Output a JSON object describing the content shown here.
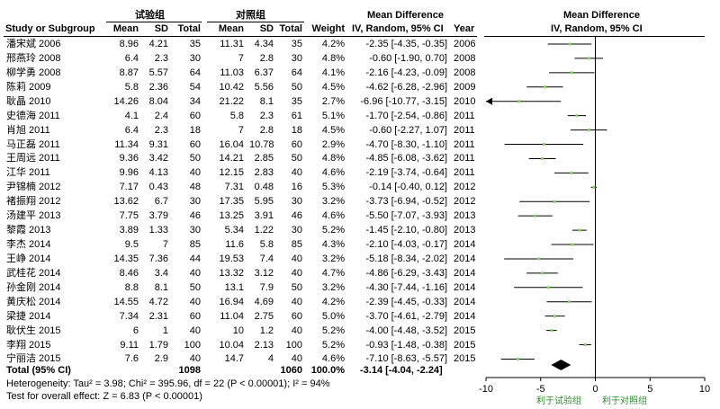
{
  "header": {
    "exp_group": "试验组",
    "ctl_group": "对照组",
    "md_title": "Mean Difference",
    "md_title_right": "Mean Difference",
    "col_study": "Study or Subgroup",
    "col_mean1": "Mean",
    "col_sd1": "SD",
    "col_total1": "Total",
    "col_mean2": "Mean",
    "col_sd2": "SD",
    "col_total2": "Total",
    "col_weight": "Weight",
    "col_ci": "IV, Random, 95% CI",
    "col_year": "Year",
    "col_ci_right": "IV, Random, 95% CI"
  },
  "studies": [
    {
      "name": "潘宋斌 2006",
      "m1": "8.96",
      "sd1": "4.21",
      "n1": "35",
      "m2": "11.31",
      "sd2": "4.34",
      "n2": "35",
      "weight": "4.2%",
      "ci": "-2.35 [-4.35, -0.35]",
      "year": "2006"
    },
    {
      "name": "邢燕玲 2008",
      "m1": "6.4",
      "sd1": "2.3",
      "n1": "30",
      "m2": "7",
      "sd2": "2.8",
      "n2": "30",
      "weight": "4.8%",
      "ci": "-0.60 [-1.90, 0.70]",
      "year": "2008"
    },
    {
      "name": "柳学勇 2008",
      "m1": "8.87",
      "sd1": "5.57",
      "n1": "64",
      "m2": "11.03",
      "sd2": "6.37",
      "n2": "64",
      "weight": "4.1%",
      "ci": "-2.16 [-4.23, -0.09]",
      "year": "2008"
    },
    {
      "name": "陈莉 2009",
      "m1": "5.8",
      "sd1": "2.36",
      "n1": "54",
      "m2": "10.42",
      "sd2": "5.56",
      "n2": "50",
      "weight": "4.5%",
      "ci": "-4.62 [-6.28, -2.96]",
      "year": "2009"
    },
    {
      "name": "耿晶 2010",
      "m1": "14.26",
      "sd1": "8.04",
      "n1": "34",
      "m2": "21.22",
      "sd2": "8.1",
      "n2": "35",
      "weight": "2.7%",
      "ci": "-6.96 [-10.77, -3.15]",
      "year": "2010"
    },
    {
      "name": "史德海 2011",
      "m1": "4.1",
      "sd1": "2.4",
      "n1": "60",
      "m2": "5.8",
      "sd2": "2.3",
      "n2": "61",
      "weight": "5.1%",
      "ci": "-1.70 [-2.54, -0.86]",
      "year": "2011"
    },
    {
      "name": "肖旭 2011",
      "m1": "6.4",
      "sd1": "2.3",
      "n1": "18",
      "m2": "7",
      "sd2": "2.8",
      "n2": "18",
      "weight": "4.5%",
      "ci": "-0.60 [-2.27, 1.07]",
      "year": "2011"
    },
    {
      "name": "马正磊 2011",
      "m1": "11.34",
      "sd1": "9.31",
      "n1": "60",
      "m2": "16.04",
      "sd2": "10.78",
      "n2": "60",
      "weight": "2.9%",
      "ci": "-4.70 [-8.30, -1.10]",
      "year": "2011"
    },
    {
      "name": "王周远 2011",
      "m1": "9.36",
      "sd1": "3.42",
      "n1": "50",
      "m2": "14.21",
      "sd2": "2.85",
      "n2": "50",
      "weight": "4.8%",
      "ci": "-4.85 [-6.08, -3.62]",
      "year": "2011"
    },
    {
      "name": "江华 2011",
      "m1": "9.96",
      "sd1": "4.13",
      "n1": "40",
      "m2": "12.15",
      "sd2": "2.83",
      "n2": "40",
      "weight": "4.6%",
      "ci": "-2.19 [-3.74, -0.64]",
      "year": "2011"
    },
    {
      "name": "尹锦楠 2012",
      "m1": "7.17",
      "sd1": "0.43",
      "n1": "48",
      "m2": "7.31",
      "sd2": "0.48",
      "n2": "16",
      "weight": "5.3%",
      "ci": "-0.14 [-0.40, 0.12]",
      "year": "2012"
    },
    {
      "name": "褚振翔 2012",
      "m1": "13.62",
      "sd1": "6.7",
      "n1": "30",
      "m2": "17.35",
      "sd2": "5.95",
      "n2": "30",
      "weight": "3.2%",
      "ci": "-3.73 [-6.94, -0.52]",
      "year": "2012"
    },
    {
      "name": "汤建平 2013",
      "m1": "7.75",
      "sd1": "3.79",
      "n1": "46",
      "m2": "13.25",
      "sd2": "3.91",
      "n2": "46",
      "weight": "4.6%",
      "ci": "-5.50 [-7.07, -3.93]",
      "year": "2013"
    },
    {
      "name": "黎霞 2013",
      "m1": "3.89",
      "sd1": "1.33",
      "n1": "30",
      "m2": "5.34",
      "sd2": "1.22",
      "n2": "30",
      "weight": "5.2%",
      "ci": "-1.45 [-2.10, -0.80]",
      "year": "2013"
    },
    {
      "name": "李杰 2014",
      "m1": "9.5",
      "sd1": "7",
      "n1": "85",
      "m2": "11.6",
      "sd2": "5.8",
      "n2": "85",
      "weight": "4.3%",
      "ci": "-2.10 [-4.03, -0.17]",
      "year": "2014"
    },
    {
      "name": "王峥 2014",
      "m1": "14.35",
      "sd1": "7.36",
      "n1": "44",
      "m2": "19.53",
      "sd2": "7.4",
      "n2": "40",
      "weight": "3.2%",
      "ci": "-5.18 [-8.34, -2.02]",
      "year": "2014"
    },
    {
      "name": "武桂花 2014",
      "m1": "8.46",
      "sd1": "3.4",
      "n1": "40",
      "m2": "13.32",
      "sd2": "3.12",
      "n2": "40",
      "weight": "4.7%",
      "ci": "-4.86 [-6.29, -3.43]",
      "year": "2014"
    },
    {
      "name": "孙金刚 2014",
      "m1": "8.8",
      "sd1": "8.1",
      "n1": "50",
      "m2": "13.1",
      "sd2": "7.9",
      "n2": "50",
      "weight": "3.2%",
      "ci": "-4.30 [-7.44, -1.16]",
      "year": "2014"
    },
    {
      "name": "黄庆松 2014",
      "m1": "14.55",
      "sd1": "4.72",
      "n1": "40",
      "m2": "16.94",
      "sd2": "4.69",
      "n2": "40",
      "weight": "4.2%",
      "ci": "-2.39 [-4.45, -0.33]",
      "year": "2014"
    },
    {
      "name": "梁捷 2014",
      "m1": "7.34",
      "sd1": "2.31",
      "n1": "60",
      "m2": "11.04",
      "sd2": "2.75",
      "n2": "60",
      "weight": "5.0%",
      "ci": "-3.70 [-4.61, -2.79]",
      "year": "2014"
    },
    {
      "name": "耿伏生 2015",
      "m1": "6",
      "sd1": "1",
      "n1": "40",
      "m2": "10",
      "sd2": "1.2",
      "n2": "40",
      "weight": "5.2%",
      "ci": "-4.00 [-4.48, -3.52]",
      "year": "2015"
    },
    {
      "name": "李翔 2015",
      "m1": "9.11",
      "sd1": "1.79",
      "n1": "100",
      "m2": "10.04",
      "sd2": "2.13",
      "n2": "100",
      "weight": "5.2%",
      "ci": "-0.93 [-1.48, -0.38]",
      "year": "2015"
    },
    {
      "name": "宁丽洁 2015",
      "m1": "7.6",
      "sd1": "2.9",
      "n1": "40",
      "m2": "14.7",
      "sd2": "4",
      "n2": "40",
      "weight": "4.6%",
      "ci": "-7.10 [-8.63, -5.57]",
      "year": "2015"
    }
  ],
  "total": {
    "label": "Total (95% CI)",
    "n1": "1098",
    "n2": "1060",
    "weight": "100.0%",
    "ci": "-3.14 [-4.04, -2.24]"
  },
  "footer": {
    "heterogeneity": "Heterogeneity: Tau² = 3.98; Chi² = 395.96, df = 22 (P < 0.00001); I² = 94%",
    "overall": "Test for overall effect: Z = 6.83 (P < 0.00001)"
  },
  "axis": {
    "favours_left": "利于试验组",
    "favours_right": "利于对照组"
  },
  "chart_data": {
    "type": "forest",
    "title": "Mean Difference",
    "subtitle": "IV, Random, 95% CI",
    "xlim": [
      -10,
      10
    ],
    "ticks": [
      -10,
      -5,
      0,
      5,
      10
    ],
    "tick_labels": [
      "-10",
      "-5",
      "0",
      "5",
      "10"
    ],
    "studies": [
      {
        "est": -2.35,
        "lo": -4.35,
        "hi": -0.35
      },
      {
        "est": -0.6,
        "lo": -1.9,
        "hi": 0.7
      },
      {
        "est": -2.16,
        "lo": -4.23,
        "hi": -0.09
      },
      {
        "est": -4.62,
        "lo": -6.28,
        "hi": -2.96
      },
      {
        "est": -6.96,
        "lo": -10.77,
        "hi": -3.15
      },
      {
        "est": -1.7,
        "lo": -2.54,
        "hi": -0.86
      },
      {
        "est": -0.6,
        "lo": -2.27,
        "hi": 1.07
      },
      {
        "est": -4.7,
        "lo": -8.3,
        "hi": -1.1
      },
      {
        "est": -4.85,
        "lo": -6.08,
        "hi": -3.62
      },
      {
        "est": -2.19,
        "lo": -3.74,
        "hi": -0.64
      },
      {
        "est": -0.14,
        "lo": -0.4,
        "hi": 0.12
      },
      {
        "est": -3.73,
        "lo": -6.94,
        "hi": -0.52
      },
      {
        "est": -5.5,
        "lo": -7.07,
        "hi": -3.93
      },
      {
        "est": -1.45,
        "lo": -2.1,
        "hi": -0.8
      },
      {
        "est": -2.1,
        "lo": -4.03,
        "hi": -0.17
      },
      {
        "est": -5.18,
        "lo": -8.34,
        "hi": -2.02
      },
      {
        "est": -4.86,
        "lo": -6.29,
        "hi": -3.43
      },
      {
        "est": -4.3,
        "lo": -7.44,
        "hi": -1.16
      },
      {
        "est": -2.39,
        "lo": -4.45,
        "hi": -0.33
      },
      {
        "est": -3.7,
        "lo": -4.61,
        "hi": -2.79
      },
      {
        "est": -4.0,
        "lo": -4.48,
        "hi": -3.52
      },
      {
        "est": -0.93,
        "lo": -1.48,
        "hi": -0.38
      },
      {
        "est": -7.1,
        "lo": -8.63,
        "hi": -5.57
      }
    ],
    "pooled": {
      "est": -3.14,
      "lo": -4.04,
      "hi": -2.24
    },
    "marker_color": "#7ed957",
    "favours_color": "#2e8b2e"
  }
}
